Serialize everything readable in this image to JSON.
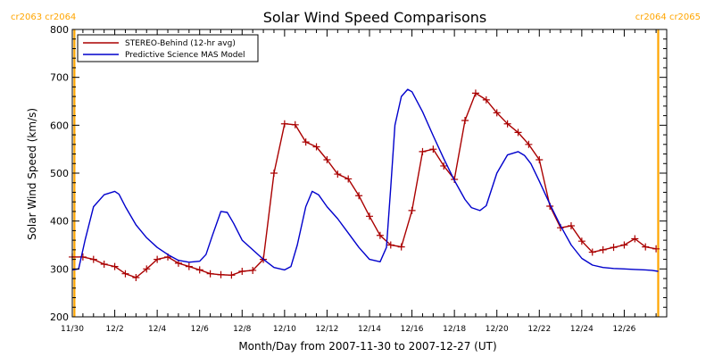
{
  "chart_data": {
    "type": "line",
    "title": "Solar Wind Speed Comparisons",
    "xlabel": "Month/Day from 2007-11-30 to 2007-12-27 (UT)",
    "ylabel": "Solar Wind Speed (km/s)",
    "ylim": [
      200,
      800
    ],
    "yticks": [
      200,
      300,
      400,
      500,
      600,
      700,
      800
    ],
    "xlim": [
      0,
      28
    ],
    "xticks": [
      {
        "x": 0,
        "label": "11/30"
      },
      {
        "x": 2,
        "label": "12/2"
      },
      {
        "x": 4,
        "label": "12/4"
      },
      {
        "x": 6,
        "label": "12/6"
      },
      {
        "x": 8,
        "label": "12/8"
      },
      {
        "x": 10,
        "label": "12/10"
      },
      {
        "x": 12,
        "label": "12/12"
      },
      {
        "x": 14,
        "label": "12/14"
      },
      {
        "x": 16,
        "label": "12/16"
      },
      {
        "x": 18,
        "label": "12/18"
      },
      {
        "x": 20,
        "label": "12/20"
      },
      {
        "x": 22,
        "label": "12/22"
      },
      {
        "x": 24,
        "label": "12/24"
      },
      {
        "x": 26,
        "label": "12/26"
      }
    ],
    "legend_position": "top-left",
    "carrington_markers": [
      {
        "x": 0.1,
        "label": "cr2063 cr2064",
        "color": "#ffa500",
        "side": "left"
      },
      {
        "x": 27.6,
        "label": "cr2064 cr2065",
        "color": "#ffa500",
        "side": "right"
      }
    ],
    "series": [
      {
        "name": "STEREO-Behind (12-hr avg)",
        "color": "#aa0000",
        "marker": "plus",
        "x": [
          0,
          0.5,
          1,
          1.5,
          2,
          2.5,
          3,
          3.5,
          4,
          4.5,
          5,
          5.5,
          6,
          6.5,
          7,
          7.5,
          8,
          8.5,
          9,
          9.5,
          10,
          10.5,
          11,
          11.5,
          12,
          12.5,
          13,
          13.5,
          14,
          14.5,
          15,
          15.5,
          16,
          16.5,
          17,
          17.5,
          18,
          18.5,
          19,
          19.5,
          20,
          20.5,
          21,
          21.5,
          22,
          22.5,
          23,
          23.5,
          24,
          24.5,
          25,
          25.5,
          26,
          26.5,
          27,
          27.5
        ],
        "y": [
          325,
          325,
          320,
          310,
          305,
          290,
          282,
          300,
          320,
          325,
          312,
          305,
          298,
          290,
          288,
          287,
          295,
          297,
          320,
          500,
          603,
          601,
          565,
          555,
          528,
          498,
          488,
          453,
          410,
          370,
          350,
          346,
          422,
          545,
          550,
          515,
          487,
          610,
          667,
          653,
          626,
          603,
          585,
          560,
          528,
          431,
          386,
          390,
          358,
          335,
          340,
          345,
          350,
          363,
          346,
          342
        ]
      },
      {
        "name": "Predictive Science MAS Model",
        "color": "#0000cc",
        "marker": "none",
        "x": [
          0,
          0.3,
          0.6,
          1,
          1.5,
          2,
          2.2,
          2.5,
          3,
          3.5,
          4,
          4.5,
          5,
          5.5,
          6,
          6.3,
          6.6,
          7,
          7.3,
          7.6,
          8,
          8.5,
          9,
          9.5,
          10,
          10.3,
          10.6,
          11,
          11.3,
          11.6,
          12,
          12.5,
          13,
          13.5,
          14,
          14.5,
          14.8,
          15,
          15.2,
          15.5,
          15.8,
          16,
          16.5,
          17,
          17.5,
          18,
          18.5,
          18.8,
          19.2,
          19.5,
          20,
          20.5,
          21,
          21.3,
          21.6,
          22,
          22.5,
          23,
          23.5,
          24,
          24.5,
          25,
          25.5,
          26,
          26.5,
          27,
          27.3,
          27.6
        ],
        "y": [
          298,
          300,
          360,
          430,
          455,
          462,
          456,
          430,
          392,
          365,
          345,
          330,
          318,
          314,
          316,
          330,
          370,
          420,
          418,
          395,
          360,
          340,
          320,
          303,
          298,
          305,
          350,
          430,
          462,
          455,
          430,
          405,
          375,
          345,
          320,
          315,
          345,
          470,
          600,
          660,
          675,
          670,
          628,
          578,
          530,
          485,
          445,
          428,
          422,
          432,
          500,
          538,
          545,
          537,
          520,
          483,
          435,
          390,
          350,
          322,
          308,
          303,
          301,
          300,
          299,
          298,
          297,
          295
        ]
      }
    ]
  }
}
